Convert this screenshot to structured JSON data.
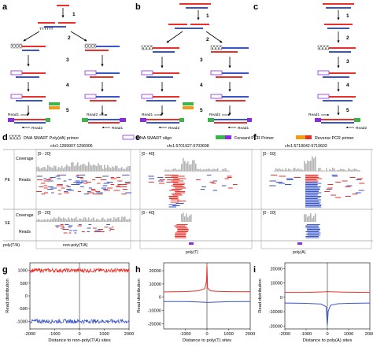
{
  "panels": {
    "a": "a",
    "b": "b",
    "c": "c",
    "d": "d",
    "e": "e",
    "f": "f",
    "g": "g",
    "h": "h",
    "i": "i"
  },
  "schematic": {
    "steps": [
      "1",
      "2",
      "3",
      "4",
      "5"
    ],
    "read1": "Read1",
    "read2": "Read2",
    "legend": {
      "polyA_primer": "DNA SMART Poly(dA) primer",
      "oligo": "DNA SMART oligo",
      "forward": "Forward PCR Primer",
      "reverse": "Reverse PCR primer"
    }
  },
  "tracks": {
    "d": {
      "locus": "chr1:1289907-1296906",
      "pe_range": "[0 - 20]",
      "se_range": "[0 - 20]",
      "annot": "non-poly(T/A)"
    },
    "e": {
      "locus": "chr1:5701927-5703698",
      "pe_range": "[0 - 40]",
      "se_range": "[0 - 40]",
      "annot": "poly(T)"
    },
    "f": {
      "locus": "chr1:5718042-5719603",
      "pe_range": "[0 - 50]",
      "se_range": "[0 - 20]",
      "annot": "poly(A)"
    },
    "labels": {
      "pe": "PE",
      "se": "SE",
      "coverage": "Coverage",
      "reads": "Reads",
      "polyta": "poly(T/A)"
    }
  },
  "colors": {
    "red": "#e8312a",
    "blue": "#3a55c8",
    "purple": "#8a2be2",
    "green": "#3cb44b",
    "orange": "#f39c12",
    "gray": "#b5b5b5"
  },
  "chart_data": [
    {
      "type": "line",
      "panel": "g",
      "xlabel": "Distance to non-poly(T/A) sites",
      "ylabel": "Read distribution",
      "xlim": [
        -2000,
        2000
      ],
      "ylim": [
        -1300,
        1300
      ],
      "xticks": [
        -2000,
        -1000,
        0,
        1000,
        2000
      ],
      "yticks": [
        -1000,
        -500,
        0,
        500,
        1000
      ],
      "series": [
        {
          "color": "#e8312a",
          "x": [
            -2000,
            0,
            2000
          ],
          "values": [
            1000,
            1000,
            1000
          ],
          "noise": 80
        },
        {
          "color": "#3a55c8",
          "x": [
            -2000,
            0,
            2000
          ],
          "values": [
            -1000,
            -1000,
            -1000
          ],
          "noise": 80
        }
      ]
    },
    {
      "type": "line",
      "panel": "h",
      "xlabel": "Distance to poly(T) sites",
      "ylabel": "Read distribution",
      "xlim": [
        -2000,
        2000
      ],
      "ylim": [
        -24000,
        26000
      ],
      "xticks": [
        -1000,
        0,
        1000,
        2000
      ],
      "yticks": [
        -20000,
        -10000,
        0,
        10000,
        20000
      ],
      "series": [
        {
          "color": "#e8312a",
          "x": [
            -2000,
            -1000,
            -400,
            -100,
            -20,
            0,
            30,
            150,
            500,
            1000,
            2000
          ],
          "values": [
            4000,
            4300,
            4800,
            6500,
            12000,
            24000,
            7000,
            4800,
            4400,
            4200,
            4100
          ]
        },
        {
          "color": "#3a55c8",
          "x": [
            -2000,
            -1000,
            -100,
            0,
            100,
            1000,
            2000
          ],
          "values": [
            -3300,
            -3300,
            -3800,
            -4000,
            -3900,
            -3400,
            -3300
          ]
        }
      ]
    },
    {
      "type": "line",
      "panel": "i",
      "xlabel": "Distance to poly(A) sites",
      "ylabel": "Read distribution",
      "xlim": [
        -2000,
        2000
      ],
      "ylim": [
        -22000,
        24000
      ],
      "xticks": [
        -2000,
        -1000,
        0,
        1000,
        2000
      ],
      "yticks": [
        -20000,
        -10000,
        0,
        10000,
        20000
      ],
      "series": [
        {
          "color": "#e8312a",
          "x": [
            -2000,
            -1000,
            -100,
            0,
            100,
            1000,
            2000
          ],
          "values": [
            3400,
            3400,
            3800,
            4000,
            3900,
            3500,
            3400
          ]
        },
        {
          "color": "#3a55c8",
          "x": [
            -2000,
            -1000,
            -300,
            -60,
            0,
            40,
            150,
            500,
            1000,
            2000
          ],
          "values": [
            -4000,
            -4200,
            -4700,
            -6500,
            -19500,
            -9500,
            -5500,
            -4500,
            -4200,
            -4000
          ]
        }
      ]
    }
  ]
}
